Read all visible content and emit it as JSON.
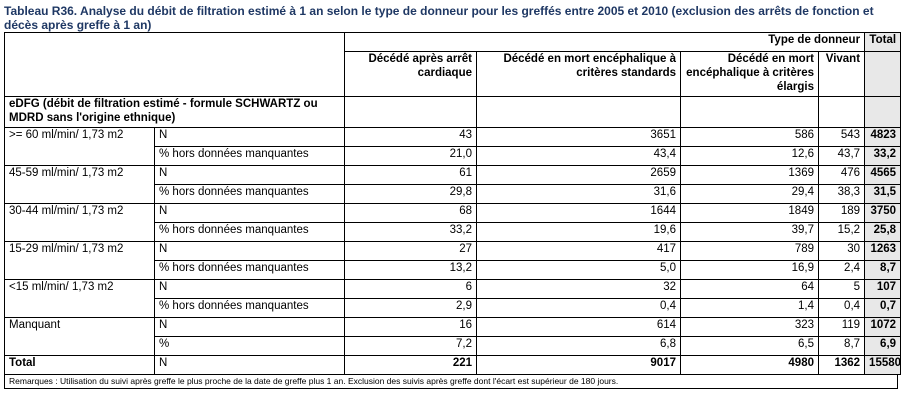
{
  "title": "Tableau R36. Analyse du débit de filtration estimé à 1 an selon le type de donneur pour les greffés entre 2005 et 2010 (exclusion des arrêts de fonction et décès après greffe à 1 an)",
  "header": {
    "type_donneur": "Type de donneur",
    "total": "Total",
    "col1": "Décédé après arrêt cardiaque",
    "col2": "Décédé en mort encéphalique à critères standards",
    "col3": "Décédé en mort encéphalique à critères élargis",
    "col4": "Vivant"
  },
  "row_header": "eDFG (débit de filtration estimé - formule SCHWARTZ ou MDRD sans l'origine ethnique)",
  "groups": [
    {
      "label": ">= 60 ml/min/ 1,73 m2",
      "rows": [
        {
          "stat": "N",
          "values": [
            "43",
            "3651",
            "586",
            "543"
          ],
          "total": "4823"
        },
        {
          "stat": "% hors données manquantes",
          "values": [
            "21,0",
            "43,4",
            "12,6",
            "43,7"
          ],
          "total": "33,2"
        }
      ]
    },
    {
      "label": "45-59 ml/min/ 1,73 m2",
      "rows": [
        {
          "stat": "N",
          "values": [
            "61",
            "2659",
            "1369",
            "476"
          ],
          "total": "4565"
        },
        {
          "stat": "% hors données manquantes",
          "values": [
            "29,8",
            "31,6",
            "29,4",
            "38,3"
          ],
          "total": "31,5"
        }
      ]
    },
    {
      "label": "30-44 ml/min/ 1,73 m2",
      "rows": [
        {
          "stat": "N",
          "values": [
            "68",
            "1644",
            "1849",
            "189"
          ],
          "total": "3750"
        },
        {
          "stat": "% hors données manquantes",
          "values": [
            "33,2",
            "19,6",
            "39,7",
            "15,2"
          ],
          "total": "25,8"
        }
      ]
    },
    {
      "label": "15-29 ml/min/ 1,73 m2",
      "rows": [
        {
          "stat": "N",
          "values": [
            "27",
            "417",
            "789",
            "30"
          ],
          "total": "1263"
        },
        {
          "stat": "% hors données manquantes",
          "values": [
            "13,2",
            "5,0",
            "16,9",
            "2,4"
          ],
          "total": "8,7"
        }
      ]
    },
    {
      "label": "<15 ml/min/ 1,73 m2",
      "rows": [
        {
          "stat": "N",
          "values": [
            "6",
            "32",
            "64",
            "5"
          ],
          "total": "107"
        },
        {
          "stat": "% hors données manquantes",
          "values": [
            "2,9",
            "0,4",
            "1,4",
            "0,4"
          ],
          "total": "0,7"
        }
      ]
    },
    {
      "label": "Manquant",
      "rows": [
        {
          "stat": "N",
          "values": [
            "16",
            "614",
            "323",
            "119"
          ],
          "total": "1072"
        },
        {
          "stat": "%",
          "values": [
            "7,2",
            "6,8",
            "6,5",
            "8,7"
          ],
          "total": "6,9"
        }
      ]
    }
  ],
  "total_row": {
    "label": "Total",
    "stat": "N",
    "values": [
      "221",
      "9017",
      "4980",
      "1362"
    ],
    "total": "15580"
  },
  "remarks": "Remarques : Utilisation du suivi après greffe le plus proche de la date de greffe plus 1 an. Exclusion des suivis après greffe dont l'écart est supérieur de 180 jours."
}
